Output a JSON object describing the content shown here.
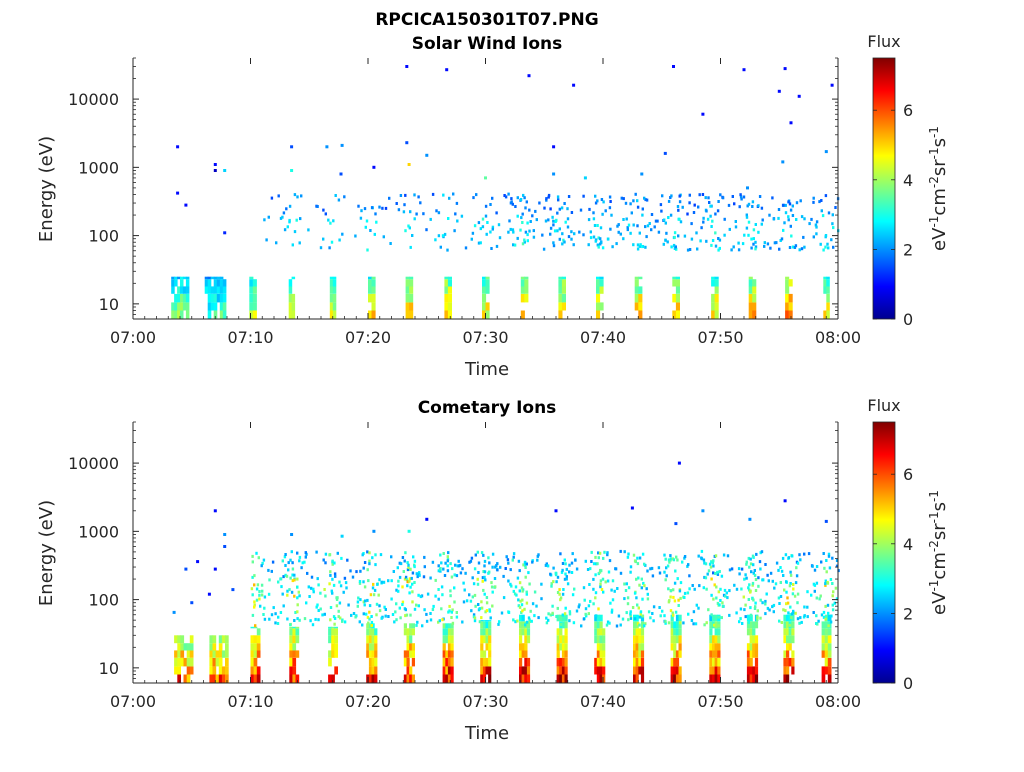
{
  "figure_title": "RPCICA150301T07.PNG",
  "chart_data": [
    {
      "type": "heatmap",
      "title": "Solar Wind Ions",
      "xlabel": "Time",
      "ylabel": "Energy (eV)",
      "x_ticks": [
        "07:00",
        "07:10",
        "07:20",
        "07:30",
        "07:40",
        "07:50",
        "08:00"
      ],
      "xlim_minutes": [
        0,
        60
      ],
      "y_scale": "log",
      "ylim": [
        6,
        40000
      ],
      "y_ticks": [
        {
          "value": 10,
          "label": "10"
        },
        {
          "value": 100,
          "label": "100"
        },
        {
          "value": 1000,
          "label": "1000"
        },
        {
          "value": 10000,
          "label": "10000"
        }
      ],
      "colorbar": {
        "title": "Flux",
        "label_parts": [
          "eV",
          "-1",
          "cm",
          "-2",
          "sr",
          "-1",
          "s",
          "-1"
        ],
        "range": [
          0,
          7.5
        ],
        "ticks": [
          "0",
          "2",
          "4",
          "6"
        ],
        "colormap": "jet"
      },
      "low_energy_bursts": [
        {
          "t": 4.0,
          "w": 1.5,
          "top": 25,
          "peak": 4.0
        },
        {
          "t": 7.0,
          "w": 1.8,
          "top": 25,
          "peak": 3.5
        },
        {
          "t": 10.2,
          "w": 0.6,
          "top": 25,
          "peak": 4.4
        },
        {
          "t": 13.5,
          "w": 0.5,
          "top": 25,
          "peak": 4.5
        },
        {
          "t": 17.0,
          "w": 0.5,
          "top": 25,
          "peak": 5.0
        },
        {
          "t": 20.3,
          "w": 0.6,
          "top": 25,
          "peak": 5.0
        },
        {
          "t": 23.5,
          "w": 0.6,
          "top": 25,
          "peak": 5.2
        },
        {
          "t": 26.8,
          "w": 0.6,
          "top": 25,
          "peak": 5.4
        },
        {
          "t": 30.0,
          "w": 0.6,
          "top": 25,
          "peak": 5.2
        },
        {
          "t": 33.3,
          "w": 0.6,
          "top": 25,
          "peak": 5.5
        },
        {
          "t": 36.5,
          "w": 0.6,
          "top": 25,
          "peak": 5.3
        },
        {
          "t": 39.7,
          "w": 0.6,
          "top": 25,
          "peak": 5.2
        },
        {
          "t": 43.0,
          "w": 0.6,
          "top": 25,
          "peak": 5.4
        },
        {
          "t": 46.2,
          "w": 0.6,
          "top": 25,
          "peak": 5.2
        },
        {
          "t": 49.5,
          "w": 0.6,
          "top": 25,
          "peak": 5.3
        },
        {
          "t": 52.7,
          "w": 0.6,
          "top": 25,
          "peak": 5.5
        },
        {
          "t": 55.8,
          "w": 0.6,
          "top": 25,
          "peak": 6.2
        },
        {
          "t": 59.0,
          "w": 0.5,
          "top": 25,
          "peak": 5.3
        }
      ],
      "scatter_points": [
        {
          "t": 3.8,
          "e": 2000,
          "v": 1.0
        },
        {
          "t": 3.8,
          "e": 420,
          "v": 1.0
        },
        {
          "t": 4.5,
          "e": 280,
          "v": 1.0
        },
        {
          "t": 7.0,
          "e": 1100,
          "v": 1.0
        },
        {
          "t": 7.0,
          "e": 900,
          "v": 0.5
        },
        {
          "t": 7.8,
          "e": 900,
          "v": 2.5
        },
        {
          "t": 7.8,
          "e": 110,
          "v": 1.2
        },
        {
          "t": 13.5,
          "e": 2000,
          "v": 1.5
        },
        {
          "t": 13.5,
          "e": 900,
          "v": 3.0
        },
        {
          "t": 16.5,
          "e": 2000,
          "v": 2.0
        },
        {
          "t": 17.8,
          "e": 2100,
          "v": 2.0
        },
        {
          "t": 17.7,
          "e": 800,
          "v": 1.5
        },
        {
          "t": 20.5,
          "e": 1000,
          "v": 1.0
        },
        {
          "t": 23.3,
          "e": 2300,
          "v": 1.5
        },
        {
          "t": 23.5,
          "e": 1100,
          "v": 5.0
        },
        {
          "t": 23.3,
          "e": 30000,
          "v": 1.0
        },
        {
          "t": 26.7,
          "e": 27000,
          "v": 1.0
        },
        {
          "t": 25.0,
          "e": 1500,
          "v": 2.0
        },
        {
          "t": 33.7,
          "e": 22000,
          "v": 1.0
        },
        {
          "t": 37.5,
          "e": 16000,
          "v": 1.0
        },
        {
          "t": 46.0,
          "e": 30000,
          "v": 1.0
        },
        {
          "t": 52.0,
          "e": 27000,
          "v": 1.0
        },
        {
          "t": 55.5,
          "e": 28000,
          "v": 1.0
        },
        {
          "t": 55.0,
          "e": 13000,
          "v": 1.0
        },
        {
          "t": 56.7,
          "e": 11000,
          "v": 1.0
        },
        {
          "t": 59.5,
          "e": 16000,
          "v": 1.0
        },
        {
          "t": 48.5,
          "e": 6000,
          "v": 1.0
        },
        {
          "t": 56.0,
          "e": 4500,
          "v": 1.0
        },
        {
          "t": 35.8,
          "e": 2000,
          "v": 1.0
        },
        {
          "t": 35.8,
          "e": 800,
          "v": 2.0
        },
        {
          "t": 30.0,
          "e": 700,
          "v": 3.5
        },
        {
          "t": 38.5,
          "e": 700,
          "v": 2.5
        },
        {
          "t": 43.3,
          "e": 800,
          "v": 2.0
        },
        {
          "t": 45.3,
          "e": 1600,
          "v": 1.5
        },
        {
          "t": 52.3,
          "e": 500,
          "v": 2.0
        },
        {
          "t": 55.3,
          "e": 1200,
          "v": 2.0
        },
        {
          "t": 59.0,
          "e": 1700,
          "v": 2.0
        }
      ],
      "scatter_band": {
        "emin": 60,
        "emax": 400,
        "tmin": 11,
        "tmax": 60,
        "dense_from": 30
      }
    },
    {
      "type": "heatmap",
      "title": "Cometary Ions",
      "xlabel": "Time",
      "ylabel": "Energy (eV)",
      "x_ticks": [
        "07:00",
        "07:10",
        "07:20",
        "07:30",
        "07:40",
        "07:50",
        "08:00"
      ],
      "xlim_minutes": [
        0,
        60
      ],
      "y_scale": "log",
      "ylim": [
        6,
        40000
      ],
      "y_ticks": [
        {
          "value": 10,
          "label": "10"
        },
        {
          "value": 100,
          "label": "100"
        },
        {
          "value": 1000,
          "label": "1000"
        },
        {
          "value": 10000,
          "label": "10000"
        }
      ],
      "colorbar": {
        "title": "Flux",
        "label_parts": [
          "eV",
          "-1",
          "cm",
          "-2",
          "sr",
          "-1",
          "s",
          "-1"
        ],
        "range": [
          0,
          7.5
        ],
        "ticks": [
          "0",
          "2",
          "4",
          "6"
        ],
        "colormap": "jet"
      },
      "low_energy_bursts": [
        {
          "t": 4.3,
          "w": 1.6,
          "top": 30,
          "peak": 6.3
        },
        {
          "t": 7.3,
          "w": 1.6,
          "top": 30,
          "peak": 6.3
        },
        {
          "t": 10.4,
          "w": 0.8,
          "top": 40,
          "peak": 6.8
        },
        {
          "t": 13.7,
          "w": 0.8,
          "top": 40,
          "peak": 7.0
        },
        {
          "t": 17.0,
          "w": 0.8,
          "top": 40,
          "peak": 6.8
        },
        {
          "t": 20.3,
          "w": 0.9,
          "top": 45,
          "peak": 7.0
        },
        {
          "t": 23.5,
          "w": 0.9,
          "top": 45,
          "peak": 7.0
        },
        {
          "t": 26.8,
          "w": 0.9,
          "top": 45,
          "peak": 7.0
        },
        {
          "t": 30.0,
          "w": 0.9,
          "top": 50,
          "peak": 7.0
        },
        {
          "t": 33.3,
          "w": 0.9,
          "top": 60,
          "peak": 7.2
        },
        {
          "t": 36.5,
          "w": 0.9,
          "top": 60,
          "peak": 7.2
        },
        {
          "t": 39.7,
          "w": 0.9,
          "top": 60,
          "peak": 7.0
        },
        {
          "t": 43.0,
          "w": 0.9,
          "top": 60,
          "peak": 7.2
        },
        {
          "t": 46.2,
          "w": 0.9,
          "top": 60,
          "peak": 7.0
        },
        {
          "t": 49.5,
          "w": 0.9,
          "top": 60,
          "peak": 7.0
        },
        {
          "t": 52.7,
          "w": 0.9,
          "top": 60,
          "peak": 7.2
        },
        {
          "t": 55.8,
          "w": 0.9,
          "top": 60,
          "peak": 7.2
        },
        {
          "t": 59.0,
          "w": 0.8,
          "top": 60,
          "peak": 6.8
        }
      ],
      "scatter_points": [
        {
          "t": 7.0,
          "e": 2000,
          "v": 1.0
        },
        {
          "t": 7.8,
          "e": 900,
          "v": 2.0
        },
        {
          "t": 7.8,
          "e": 600,
          "v": 1.5
        },
        {
          "t": 4.5,
          "e": 280,
          "v": 1.5
        },
        {
          "t": 5.5,
          "e": 360,
          "v": 1.0
        },
        {
          "t": 7.0,
          "e": 280,
          "v": 1.0
        },
        {
          "t": 3.5,
          "e": 65,
          "v": 2.0
        },
        {
          "t": 5.0,
          "e": 90,
          "v": 1.5
        },
        {
          "t": 6.5,
          "e": 120,
          "v": 1.0
        },
        {
          "t": 8.5,
          "e": 140,
          "v": 1.5
        },
        {
          "t": 13.5,
          "e": 900,
          "v": 2.0
        },
        {
          "t": 17.8,
          "e": 850,
          "v": 2.5
        },
        {
          "t": 20.5,
          "e": 1000,
          "v": 2.0
        },
        {
          "t": 23.5,
          "e": 1000,
          "v": 3.0
        },
        {
          "t": 25.0,
          "e": 1500,
          "v": 1.0
        },
        {
          "t": 36.0,
          "e": 2000,
          "v": 1.0
        },
        {
          "t": 42.5,
          "e": 2200,
          "v": 1.0
        },
        {
          "t": 46.5,
          "e": 10000,
          "v": 1.0
        },
        {
          "t": 48.5,
          "e": 2000,
          "v": 2.0
        },
        {
          "t": 52.5,
          "e": 1500,
          "v": 2.0
        },
        {
          "t": 55.5,
          "e": 2800,
          "v": 1.0
        },
        {
          "t": 59.0,
          "e": 1400,
          "v": 1.5
        },
        {
          "t": 46.2,
          "e": 1300,
          "v": 1.5
        }
      ],
      "scatter_band": {
        "emin": 40,
        "emax": 500,
        "tmin": 10,
        "tmax": 60,
        "dense_from": 10
      }
    }
  ]
}
